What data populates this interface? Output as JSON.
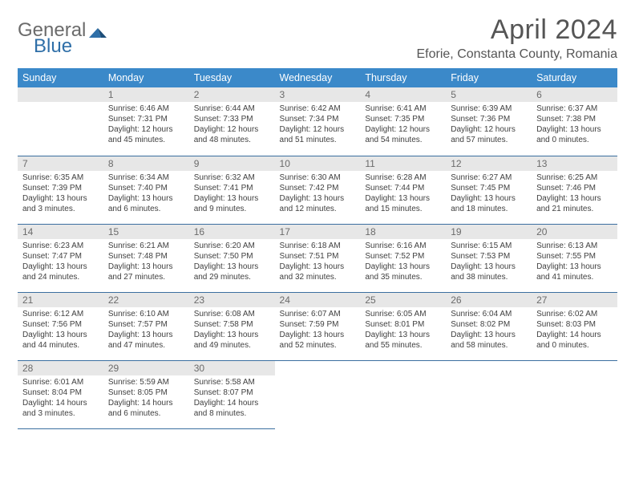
{
  "logo": {
    "general": "General",
    "blue": "Blue"
  },
  "title": "April 2024",
  "location": "Eforie, Constanta County, Romania",
  "colors": {
    "header_bg": "#3b89c9",
    "header_text": "#ffffff",
    "daynum_bg": "#e7e7e7",
    "row_border": "#3b6fa0",
    "logo_blue": "#2f6fa8",
    "logo_gray": "#6b6b6b"
  },
  "typography": {
    "title_fontsize": 34,
    "location_fontsize": 16,
    "dayhead_fontsize": 12.5,
    "daynum_fontsize": 12,
    "body_fontsize": 10
  },
  "day_headers": [
    "Sunday",
    "Monday",
    "Tuesday",
    "Wednesday",
    "Thursday",
    "Friday",
    "Saturday"
  ],
  "weeks": [
    [
      null,
      {
        "n": "1",
        "sr": "6:46 AM",
        "ss": "7:31 PM",
        "dl": "12 hours and 45 minutes."
      },
      {
        "n": "2",
        "sr": "6:44 AM",
        "ss": "7:33 PM",
        "dl": "12 hours and 48 minutes."
      },
      {
        "n": "3",
        "sr": "6:42 AM",
        "ss": "7:34 PM",
        "dl": "12 hours and 51 minutes."
      },
      {
        "n": "4",
        "sr": "6:41 AM",
        "ss": "7:35 PM",
        "dl": "12 hours and 54 minutes."
      },
      {
        "n": "5",
        "sr": "6:39 AM",
        "ss": "7:36 PM",
        "dl": "12 hours and 57 minutes."
      },
      {
        "n": "6",
        "sr": "6:37 AM",
        "ss": "7:38 PM",
        "dl": "13 hours and 0 minutes."
      }
    ],
    [
      {
        "n": "7",
        "sr": "6:35 AM",
        "ss": "7:39 PM",
        "dl": "13 hours and 3 minutes."
      },
      {
        "n": "8",
        "sr": "6:34 AM",
        "ss": "7:40 PM",
        "dl": "13 hours and 6 minutes."
      },
      {
        "n": "9",
        "sr": "6:32 AM",
        "ss": "7:41 PM",
        "dl": "13 hours and 9 minutes."
      },
      {
        "n": "10",
        "sr": "6:30 AM",
        "ss": "7:42 PM",
        "dl": "13 hours and 12 minutes."
      },
      {
        "n": "11",
        "sr": "6:28 AM",
        "ss": "7:44 PM",
        "dl": "13 hours and 15 minutes."
      },
      {
        "n": "12",
        "sr": "6:27 AM",
        "ss": "7:45 PM",
        "dl": "13 hours and 18 minutes."
      },
      {
        "n": "13",
        "sr": "6:25 AM",
        "ss": "7:46 PM",
        "dl": "13 hours and 21 minutes."
      }
    ],
    [
      {
        "n": "14",
        "sr": "6:23 AM",
        "ss": "7:47 PM",
        "dl": "13 hours and 24 minutes."
      },
      {
        "n": "15",
        "sr": "6:21 AM",
        "ss": "7:48 PM",
        "dl": "13 hours and 27 minutes."
      },
      {
        "n": "16",
        "sr": "6:20 AM",
        "ss": "7:50 PM",
        "dl": "13 hours and 29 minutes."
      },
      {
        "n": "17",
        "sr": "6:18 AM",
        "ss": "7:51 PM",
        "dl": "13 hours and 32 minutes."
      },
      {
        "n": "18",
        "sr": "6:16 AM",
        "ss": "7:52 PM",
        "dl": "13 hours and 35 minutes."
      },
      {
        "n": "19",
        "sr": "6:15 AM",
        "ss": "7:53 PM",
        "dl": "13 hours and 38 minutes."
      },
      {
        "n": "20",
        "sr": "6:13 AM",
        "ss": "7:55 PM",
        "dl": "13 hours and 41 minutes."
      }
    ],
    [
      {
        "n": "21",
        "sr": "6:12 AM",
        "ss": "7:56 PM",
        "dl": "13 hours and 44 minutes."
      },
      {
        "n": "22",
        "sr": "6:10 AM",
        "ss": "7:57 PM",
        "dl": "13 hours and 47 minutes."
      },
      {
        "n": "23",
        "sr": "6:08 AM",
        "ss": "7:58 PM",
        "dl": "13 hours and 49 minutes."
      },
      {
        "n": "24",
        "sr": "6:07 AM",
        "ss": "7:59 PM",
        "dl": "13 hours and 52 minutes."
      },
      {
        "n": "25",
        "sr": "6:05 AM",
        "ss": "8:01 PM",
        "dl": "13 hours and 55 minutes."
      },
      {
        "n": "26",
        "sr": "6:04 AM",
        "ss": "8:02 PM",
        "dl": "13 hours and 58 minutes."
      },
      {
        "n": "27",
        "sr": "6:02 AM",
        "ss": "8:03 PM",
        "dl": "14 hours and 0 minutes."
      }
    ],
    [
      {
        "n": "28",
        "sr": "6:01 AM",
        "ss": "8:04 PM",
        "dl": "14 hours and 3 minutes."
      },
      {
        "n": "29",
        "sr": "5:59 AM",
        "ss": "8:05 PM",
        "dl": "14 hours and 6 minutes."
      },
      {
        "n": "30",
        "sr": "5:58 AM",
        "ss": "8:07 PM",
        "dl": "14 hours and 8 minutes."
      },
      null,
      null,
      null,
      null
    ]
  ],
  "labels": {
    "sunrise": "Sunrise:",
    "sunset": "Sunset:",
    "daylight": "Daylight:"
  }
}
